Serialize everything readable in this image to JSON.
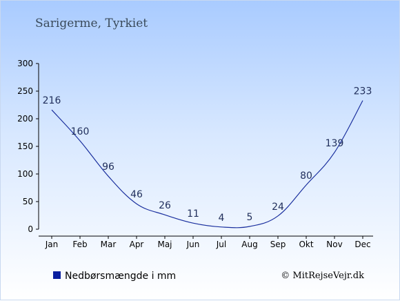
{
  "location": "Sarigerme, Tyrkiet",
  "legend_label": "Nedbørsmængde i mm",
  "credit": "© MitRejseVejr.dk",
  "colors": {
    "line": "#1a2f9e",
    "legend_swatch": "#0a1fa0",
    "axis": "#000000"
  },
  "chart_data": {
    "type": "line",
    "categories": [
      "Jan",
      "Feb",
      "Mar",
      "Apr",
      "Maj",
      "Jun",
      "Jul",
      "Aug",
      "Sep",
      "Okt",
      "Nov",
      "Dec"
    ],
    "series": [
      {
        "name": "Nedbørsmængde i mm",
        "values": [
          216,
          160,
          96,
          46,
          26,
          11,
          4,
          5,
          24,
          80,
          139,
          233
        ]
      }
    ],
    "ylim": [
      0,
      300
    ],
    "yticks": [
      0,
      50,
      100,
      150,
      200,
      250,
      300
    ],
    "grid": false,
    "legend_position": "bottom-left"
  }
}
